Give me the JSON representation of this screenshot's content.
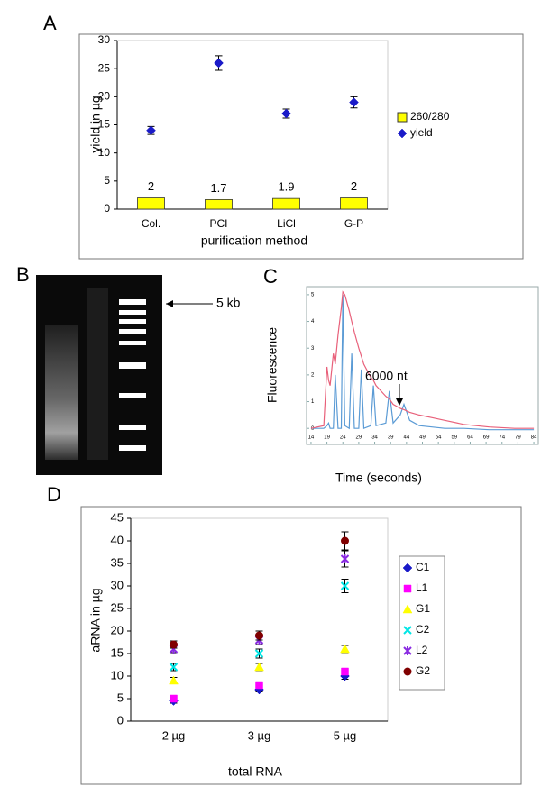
{
  "gel": {
    "label": "B",
    "annotation": "5 kb"
  },
  "chart_data": [
    {
      "type": "bar",
      "label": "A",
      "categories": [
        "Col.",
        "PCI",
        "LiCl",
        "G-P"
      ],
      "xlabel": "purification method",
      "ylabel": "yield in µg",
      "ylim": [
        0,
        30
      ],
      "yticks": [
        0,
        5,
        10,
        15,
        20,
        25,
        30
      ],
      "legend": "right",
      "series": [
        {
          "name": "260/280",
          "type": "bar",
          "color": "#ffff00",
          "values": [
            2,
            1.7,
            1.9,
            2
          ]
        },
        {
          "name": "yield",
          "type": "scatter",
          "marker": "diamond",
          "color": "#1a1ac8",
          "values": [
            14,
            26,
            17,
            19
          ],
          "errors": [
            0.7,
            1.3,
            0.8,
            1.0
          ]
        }
      ]
    },
    {
      "type": "line",
      "label": "C",
      "xlabel": "Time (seconds)",
      "ylabel": "Fluorescence",
      "annotation": "6000 nt",
      "x": [
        14,
        18,
        19,
        19.5,
        20,
        21,
        21.6,
        22.5,
        23.5,
        24,
        24.6,
        26,
        26.8,
        27.6,
        29,
        29.8,
        30.6,
        32.8,
        33.6,
        34.4,
        37.5,
        38.6,
        39.8,
        42,
        43.2,
        45,
        48,
        52,
        56,
        62,
        70,
        78,
        84
      ],
      "xlim": [
        12.6,
        85.4
      ],
      "ylim": [
        -0.6,
        5.3
      ],
      "xticks": [
        14,
        19,
        24,
        29,
        34,
        39,
        44,
        49,
        54,
        59,
        64,
        69,
        74,
        79,
        84
      ],
      "yticks": [
        0,
        1,
        2,
        3,
        4,
        5
      ],
      "series": [
        {
          "color": "#5b9bd5",
          "values": [
            0,
            0,
            0.1,
            0.2,
            0,
            0,
            2.0,
            0,
            0,
            5.0,
            0.1,
            0,
            2.8,
            0,
            0,
            2.2,
            0,
            0.1,
            1.6,
            0.1,
            0.2,
            1.4,
            0.2,
            0.5,
            0.9,
            0.3,
            0.1,
            0.05,
            0,
            0,
            -0.05,
            -0.05,
            -0.05
          ]
        },
        {
          "color": "#e8607a",
          "values": [
            0,
            0.1,
            2.3,
            1.8,
            1.6,
            2.8,
            2.4,
            3.5,
            4.5,
            5.1,
            5.0,
            4.4,
            4.0,
            3.6,
            3.0,
            2.7,
            2.4,
            1.9,
            1.8,
            1.6,
            1.2,
            1.1,
            0.9,
            0.75,
            0.7,
            0.6,
            0.5,
            0.4,
            0.3,
            0.15,
            0.05,
            0,
            0
          ]
        }
      ]
    },
    {
      "type": "scatter",
      "label": "D",
      "categories": [
        "2 µg",
        "3 µg",
        "5 µg"
      ],
      "xlabel": "total RNA",
      "ylabel": "aRNA in µg",
      "ylim": [
        0,
        45
      ],
      "yticks": [
        0,
        5,
        10,
        15,
        20,
        25,
        30,
        35,
        40,
        45
      ],
      "legend": "right",
      "series": [
        {
          "name": "C1",
          "marker": "diamond",
          "color": "#1a1ac8",
          "values": [
            4.5,
            7,
            10
          ],
          "errors": [
            0.5,
            0.5,
            0.7
          ]
        },
        {
          "name": "L1",
          "marker": "square",
          "color": "#ff00ff",
          "values": [
            5,
            8,
            11
          ],
          "errors": [
            0.5,
            0.5,
            0.7
          ]
        },
        {
          "name": "G1",
          "marker": "triangle",
          "color": "#ffff00",
          "values": [
            9,
            12,
            16
          ],
          "errors": [
            0.7,
            0.8,
            0.8
          ]
        },
        {
          "name": "C2",
          "marker": "x",
          "color": "#00e5e5",
          "values": [
            12,
            15,
            30
          ],
          "errors": [
            0.8,
            1.0,
            1.5
          ]
        },
        {
          "name": "L2",
          "marker": "star",
          "color": "#8a2be2",
          "values": [
            16,
            18,
            36
          ],
          "errors": [
            0.8,
            1.0,
            1.8
          ]
        },
        {
          "name": "G2",
          "marker": "circle",
          "color": "#800000",
          "values": [
            17,
            19,
            40
          ],
          "errors": [
            0.8,
            1.0,
            2.0
          ]
        }
      ]
    }
  ]
}
